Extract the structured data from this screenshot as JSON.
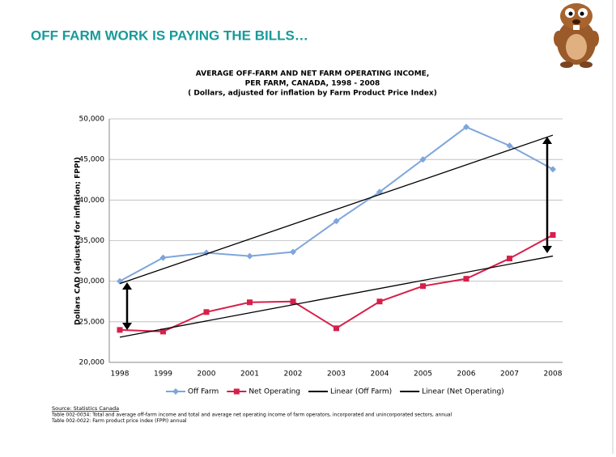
{
  "slide": {
    "title": "OFF FARM WORK IS PAYING THE BILLS…"
  },
  "chart_data": {
    "type": "line",
    "title": [
      "AVERAGE OFF-FARM AND NET FARM OPERATING INCOME,",
      "PER FARM,  CANADA, 1998 - 2008",
      "( Dollars, adjusted for inflation by Farm Product Price Index)"
    ],
    "y_label": "Dollars CAD (adjusted for inflation; FPPI)",
    "categories": [
      "1998",
      "1999",
      "2000",
      "2001",
      "2002",
      "2003",
      "2004",
      "2005",
      "2006",
      "2007",
      "2008"
    ],
    "series": [
      {
        "name": "Off Farm",
        "color": "#7ea6dc",
        "marker": "diamond",
        "values": [
          30000,
          32900,
          33500,
          33100,
          33600,
          37400,
          41000,
          45000,
          49000,
          46700,
          43800
        ]
      },
      {
        "name": "Net Operating",
        "color": "#d6204a",
        "marker": "square",
        "values": [
          24000,
          23800,
          26200,
          27400,
          27500,
          24200,
          27500,
          29400,
          30300,
          32800,
          35700
        ]
      },
      {
        "name": "Linear (Off Farm)",
        "color": "#000000",
        "marker": "none",
        "values": [
          29700,
          31530,
          33360,
          35190,
          37020,
          38850,
          40680,
          42510,
          44340,
          46170,
          48000
        ]
      },
      {
        "name": "Linear (Net Operating)",
        "color": "#000000",
        "marker": "none",
        "values": [
          23100,
          24100,
          25100,
          26100,
          27100,
          28100,
          29100,
          30100,
          31100,
          32100,
          33100
        ]
      }
    ],
    "ylim": [
      20000,
      50000
    ],
    "yticks": [
      {
        "value": 20000,
        "label": "20,000"
      },
      {
        "value": 25000,
        "label": "25,000"
      },
      {
        "value": 30000,
        "label": "30,000"
      },
      {
        "value": 35000,
        "label": "35,000"
      },
      {
        "value": 40000,
        "label": "40,000"
      },
      {
        "value": 45000,
        "label": "45,000"
      },
      {
        "value": 50000,
        "label": "50,000"
      }
    ],
    "grid": true,
    "legend": "bottom"
  },
  "source": {
    "label": "Source:  Statistics Canada",
    "lines": [
      "Table 002-0034:  Total and average off-farm income and total and average net operating income of farm operators, incorporated and unincorporated sectors, annual",
      "Table 002-0022: Farm product price index (FPPI) annual"
    ]
  }
}
